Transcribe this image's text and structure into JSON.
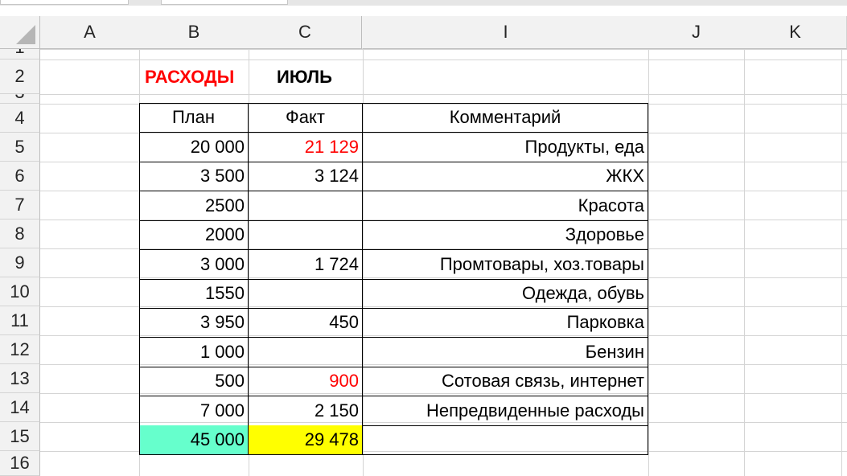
{
  "columns": [
    "A",
    "B",
    "C",
    "I",
    "J",
    "K"
  ],
  "rows": [
    "1",
    "2",
    "3",
    "4",
    "5",
    "6",
    "7",
    "8",
    "9",
    "10",
    "11",
    "12",
    "13",
    "14",
    "15",
    "16"
  ],
  "title": {
    "expenses": "РАСХОДЫ",
    "month": "ИЮЛЬ"
  },
  "table": {
    "headers": {
      "plan": "План",
      "fact": "Факт",
      "comment": "Комментарий"
    },
    "rows": [
      {
        "plan": "20 000",
        "fact": "21 129",
        "fact_over": true,
        "comment": "Продукты, еда"
      },
      {
        "plan": "3 500",
        "fact": "3 124",
        "fact_over": false,
        "comment": "ЖКХ"
      },
      {
        "plan": "2500",
        "fact": "",
        "fact_over": false,
        "comment": "Красота"
      },
      {
        "plan": "2000",
        "fact": "",
        "fact_over": false,
        "comment": "Здоровье"
      },
      {
        "plan": "3 000",
        "fact": "1 724",
        "fact_over": false,
        "comment": "Промтовары, хоз.товары"
      },
      {
        "plan": "1550",
        "fact": "",
        "fact_over": false,
        "comment": "Одежда, обувь"
      },
      {
        "plan": "3 950",
        "fact": "450",
        "fact_over": false,
        "comment": "Парковка"
      },
      {
        "plan": "1 000",
        "fact": "",
        "fact_over": false,
        "comment": "Бензин"
      },
      {
        "plan": "500",
        "fact": "900",
        "fact_over": true,
        "comment": "Сотовая связь, интернет"
      },
      {
        "plan": "7 000",
        "fact": "2 150",
        "fact_over": false,
        "comment": "Непредвиденные расходы"
      }
    ],
    "totals": {
      "plan": "45 000",
      "fact": "29 478",
      "comment": ""
    }
  },
  "colors": {
    "header_bg": "#f2f2f2",
    "grid": "#d4d4d4",
    "over_budget_text": "#ff0000",
    "total_plan_fill": "#66ffcc",
    "total_fact_fill": "#ffff00"
  }
}
